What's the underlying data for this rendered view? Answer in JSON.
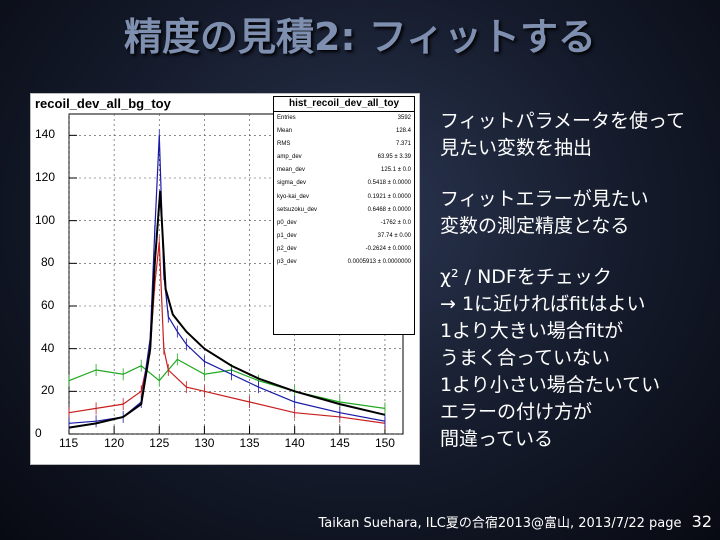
{
  "slide": {
    "title": "精度の見積2: フィットする"
  },
  "plot": {
    "hist_title": "recoil_dev_all_bg_toy",
    "stats_title": "hist_recoil_dev_all_toy",
    "stats": [
      {
        "label": "Entries",
        "value": "3592"
      },
      {
        "label": "Mean",
        "value": "128.4"
      },
      {
        "label": "RMS",
        "value": "7.371"
      },
      {
        "label": "amp_dev",
        "value": "63.95 ± 3.39"
      },
      {
        "label": "mean_dev",
        "value": "125.1 ± 0.0"
      },
      {
        "label": "sigma_dev",
        "value": "0.5418 ± 0.0000"
      },
      {
        "label": "kyo-kai_dev",
        "value": "0.1921 ± 0.0000"
      },
      {
        "label": "setsuzoku_dev",
        "value": "0.6468 ± 0.0000"
      },
      {
        "label": "p0_dev",
        "value": "-1762 ± 0.0"
      },
      {
        "label": "p1_dev",
        "value": "37.74 ± 0.00"
      },
      {
        "label": "p2_dev",
        "value": "-0.2624 ± 0.0000"
      },
      {
        "label": "p3_dev",
        "value": "0.0005913 ± 0.0000000"
      }
    ],
    "y_ticks": [
      "0",
      "20",
      "40",
      "60",
      "80",
      "100",
      "120",
      "140"
    ],
    "x_ticks": [
      "115",
      "120",
      "125",
      "130",
      "135",
      "140",
      "145",
      "150"
    ]
  },
  "chart_data": {
    "type": "line",
    "title": "recoil_dev_all_bg_toy",
    "xlabel": "",
    "ylabel": "",
    "xlim": [
      115,
      152
    ],
    "ylim": [
      0,
      150
    ],
    "grid": true,
    "colors": {
      "black_fit": "#000000",
      "blue": "#1a1aa8",
      "red": "#c81e1e",
      "green": "#1ea81e"
    },
    "series": [
      {
        "color": "blue",
        "x": [
          115,
          118,
          121,
          123,
          124,
          124.5,
          125,
          125.5,
          126,
          127,
          128,
          130,
          133,
          136,
          140,
          145,
          150
        ],
        "y": [
          5,
          6,
          8,
          15,
          45,
          95,
          140,
          75,
          55,
          48,
          42,
          34,
          28,
          22,
          15,
          10,
          6
        ]
      },
      {
        "color": "black_fit",
        "x": [
          115,
          118,
          121,
          123,
          124,
          124.5,
          125.1,
          125.7,
          126.5,
          128,
          130,
          133,
          136,
          140,
          145,
          150
        ],
        "y": [
          3,
          5,
          8,
          14,
          40,
          80,
          114,
          68,
          56,
          48,
          40,
          32,
          26,
          20,
          14,
          9
        ]
      },
      {
        "color": "red",
        "x": [
          115,
          118,
          121,
          123,
          124,
          124.5,
          125,
          125.5,
          126,
          128,
          130,
          135,
          140,
          145,
          150
        ],
        "y": [
          10,
          12,
          14,
          20,
          40,
          70,
          90,
          40,
          30,
          22,
          20,
          15,
          10,
          8,
          5
        ]
      },
      {
        "color": "green",
        "x": [
          115,
          118,
          121,
          123,
          125,
          127,
          130,
          133,
          136,
          140,
          145,
          150
        ],
        "y": [
          25,
          30,
          28,
          32,
          25,
          35,
          28,
          30,
          25,
          20,
          15,
          12
        ]
      }
    ]
  },
  "bullets": [
    {
      "lines": [
        "フィットパラメータを使って",
        "見たい変数を抽出"
      ]
    },
    {
      "lines": [
        "フィットエラーが見たい",
        "変数の測定精度となる"
      ]
    },
    {
      "lines": [
        "χ² / NDFをチェック",
        "→ 1に近ければfitはよい",
        "1より大きい場合fitが",
        "うまく合っていない",
        "1より小さい場合たいてい",
        "エラーの付け方が",
        "間違っている"
      ]
    }
  ],
  "footer": {
    "text": "Taikan Suehara, ILC夏の合宿2013@富山, 2013/7/22",
    "page_label": "page",
    "page_number": "32"
  }
}
